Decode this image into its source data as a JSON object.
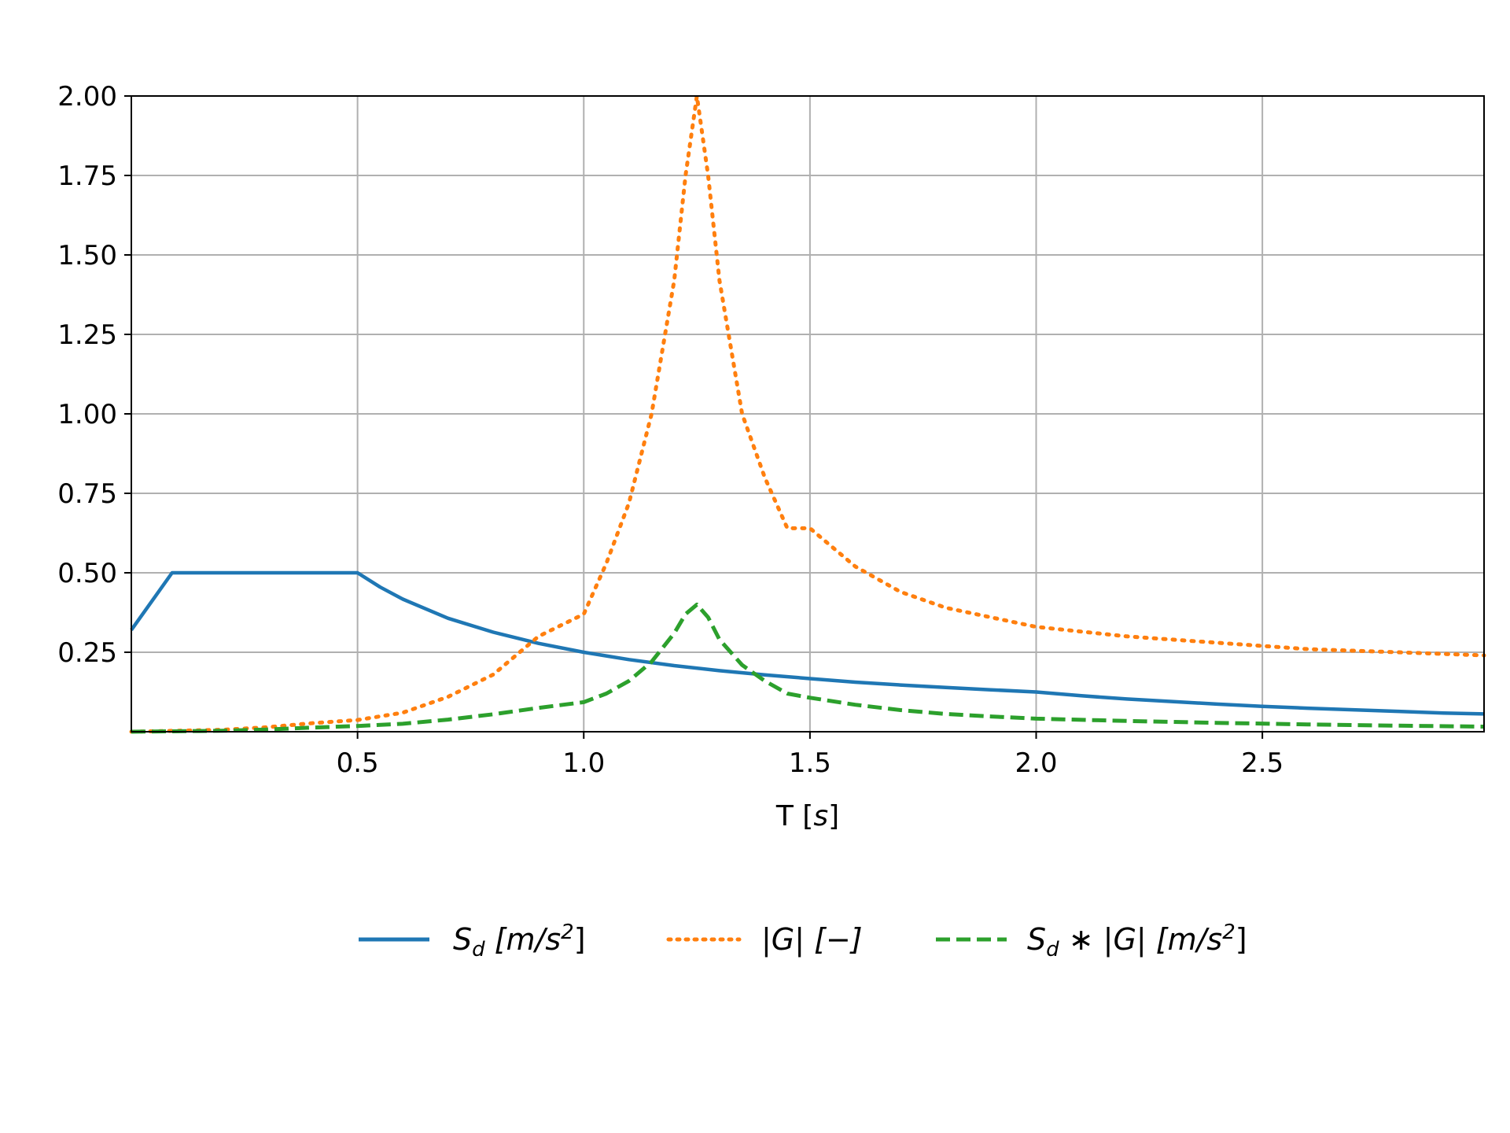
{
  "chart_data": {
    "type": "line",
    "xlabel_text": "T [",
    "xlabel_unit": "s",
    "xlabel_close": "]",
    "ylabel": "",
    "title": "",
    "xlim": [
      0.0,
      2.99
    ],
    "ylim": [
      0.0,
      2.0
    ],
    "x_ticks": [
      0.5,
      1.0,
      1.5,
      2.0,
      2.5
    ],
    "x_tick_labels": [
      "0.5",
      "1.0",
      "1.5",
      "2.0",
      "2.5"
    ],
    "y_ticks": [
      0.25,
      0.5,
      0.75,
      1.0,
      1.25,
      1.5,
      1.75,
      2.0
    ],
    "y_tick_labels": [
      "0.25",
      "0.50",
      "0.75",
      "1.00",
      "1.25",
      "1.50",
      "1.75",
      "2.00"
    ],
    "grid": true,
    "legend_position": "bottom-center",
    "legend": {
      "sd_main": "S",
      "sd_sub": "d",
      "sd_units": " [m/s",
      "sd_sup": "2",
      "sd_close": "]",
      "g_label": "|G| [−]",
      "prod_main": "S",
      "prod_sub": "d",
      "prod_mid": " ∗ |G| [m/s",
      "prod_sup": "2",
      "prod_close": "]"
    },
    "series": [
      {
        "key": "sd",
        "color": "#1f77b4",
        "style": "solid",
        "x": [
          0.0,
          0.05,
          0.09,
          0.15,
          0.2,
          0.3,
          0.4,
          0.5,
          0.55,
          0.6,
          0.7,
          0.8,
          0.9,
          1.0,
          1.1,
          1.2,
          1.3,
          1.4,
          1.5,
          1.6,
          1.7,
          1.8,
          1.9,
          2.0,
          2.1,
          2.2,
          2.3,
          2.4,
          2.5,
          2.6,
          2.7,
          2.8,
          2.9,
          2.99
        ],
        "y": [
          0.32,
          0.42,
          0.5,
          0.5,
          0.5,
          0.5,
          0.5,
          0.5,
          0.455,
          0.417,
          0.357,
          0.313,
          0.278,
          0.25,
          0.227,
          0.208,
          0.192,
          0.179,
          0.167,
          0.156,
          0.147,
          0.139,
          0.132,
          0.125,
          0.113,
          0.103,
          0.095,
          0.087,
          0.08,
          0.074,
          0.069,
          0.064,
          0.059,
          0.056
        ]
      },
      {
        "key": "g",
        "color": "#ff7f0e",
        "style": "dotted",
        "x": [
          0.0,
          0.2,
          0.3,
          0.4,
          0.5,
          0.6,
          0.7,
          0.8,
          0.9,
          1.0,
          1.05,
          1.1,
          1.15,
          1.2,
          1.225,
          1.25,
          1.275,
          1.3,
          1.35,
          1.4,
          1.45,
          1.5,
          1.6,
          1.7,
          1.8,
          1.9,
          2.0,
          2.2,
          2.4,
          2.6,
          2.8,
          2.99
        ],
        "y": [
          0.0,
          0.006,
          0.014,
          0.027,
          0.037,
          0.06,
          0.11,
          0.18,
          0.3,
          0.37,
          0.53,
          0.72,
          1.0,
          1.42,
          1.75,
          2.0,
          1.75,
          1.42,
          1.0,
          0.8,
          0.64,
          0.64,
          0.52,
          0.44,
          0.39,
          0.36,
          0.33,
          0.3,
          0.28,
          0.26,
          0.25,
          0.24
        ]
      },
      {
        "key": "prod",
        "color": "#2ca02c",
        "style": "dashed",
        "x": [
          0.0,
          0.2,
          0.3,
          0.4,
          0.5,
          0.6,
          0.7,
          0.8,
          0.9,
          1.0,
          1.05,
          1.1,
          1.15,
          1.2,
          1.225,
          1.25,
          1.275,
          1.3,
          1.35,
          1.4,
          1.45,
          1.5,
          1.6,
          1.7,
          1.8,
          1.9,
          2.0,
          2.2,
          2.4,
          2.6,
          2.8,
          2.99
        ],
        "y": [
          0.0,
          0.003,
          0.007,
          0.013,
          0.018,
          0.025,
          0.038,
          0.055,
          0.075,
          0.093,
          0.12,
          0.16,
          0.22,
          0.31,
          0.37,
          0.4,
          0.36,
          0.29,
          0.21,
          0.16,
          0.12,
          0.107,
          0.085,
          0.068,
          0.056,
          0.048,
          0.041,
          0.034,
          0.028,
          0.023,
          0.019,
          0.016
        ]
      }
    ]
  }
}
